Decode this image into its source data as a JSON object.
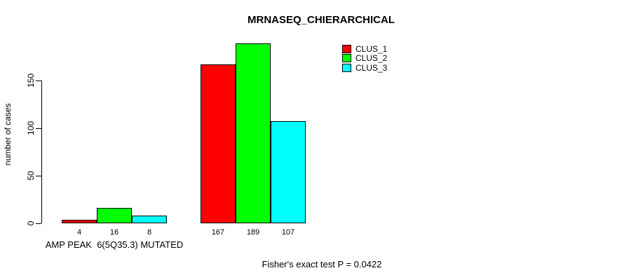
{
  "chart_data": {
    "type": "bar",
    "title": "MRNASEQ_CHIERARCHICAL",
    "ylabel": "number of cases",
    "xlabel": "",
    "categories": [
      "AMP PEAK  6(5Q35.3) MUTATED",
      ""
    ],
    "series": [
      {
        "name": "CLUS_1",
        "color": "#FF0000",
        "values": [
          4,
          167
        ]
      },
      {
        "name": "CLUS_2",
        "color": "#00FF00",
        "values": [
          16,
          189
        ]
      },
      {
        "name": "CLUS_3",
        "color": "#00FFFF",
        "values": [
          8,
          107
        ]
      }
    ],
    "yticks": [
      0,
      50,
      100,
      150
    ],
    "ylim": [
      0,
      200
    ],
    "bar_value_labels_shown": true,
    "grid": false,
    "legend_position": "top-right",
    "annotation": "Fisher's exact test P = 0.0422",
    "axis_color": "#000000",
    "background_color": "#FFFFFF"
  }
}
